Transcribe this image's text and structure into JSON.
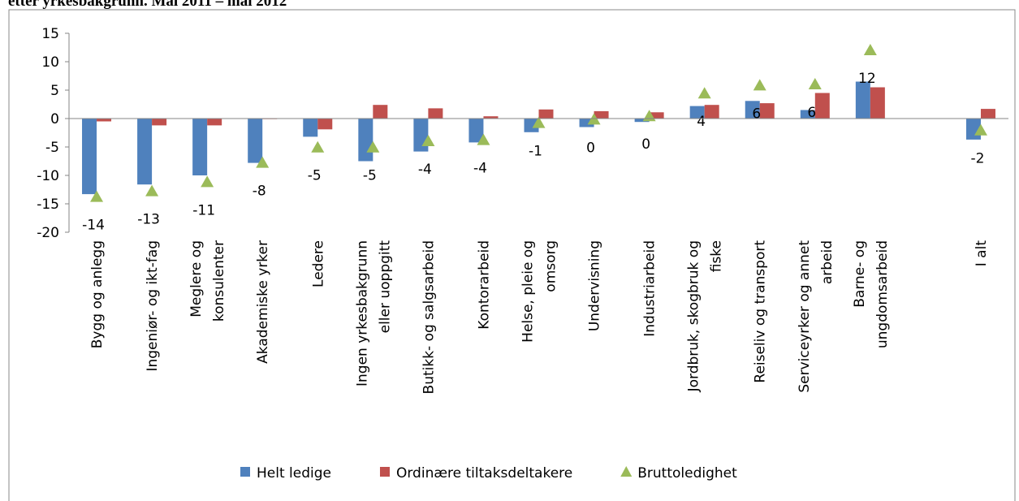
{
  "chart_data": {
    "type": "bar",
    "title": "etter yrkesbakgrunn. Mai 2011 – mai 2012",
    "categories": [
      "Bygg og anlegg",
      "Ingeniør- og ikt-fag",
      "Meglere og\nkonsulenter",
      "Akademiske yrker",
      "Ledere",
      "Ingen yrkesbakgrunn\neller uoppgitt",
      "Butikk- og salgsarbeid",
      "Kontorarbeid",
      "Helse, pleie og\nomsorg",
      "Undervisning",
      "Industriarbeid",
      "Jordbruk, skogbruk og\nfiske",
      "Reiseliv og transport",
      "Serviceyrker og annet\narbeid",
      "Barne- og\nungdomsarbeid",
      null,
      "I alt"
    ],
    "series": [
      {
        "name": "Helt ledige",
        "type": "bar",
        "color": "#4f81bd",
        "values": [
          -13.3,
          -11.6,
          -10,
          -7.8,
          -3.2,
          -7.5,
          -5.8,
          -4.2,
          -2.4,
          -1.5,
          -0.6,
          2.2,
          3.1,
          1.5,
          6.5,
          null,
          -3.7
        ]
      },
      {
        "name": "Ordinære tiltaksdeltakere",
        "type": "bar",
        "color": "#c0504d",
        "values": [
          -0.5,
          -1.2,
          -1.2,
          -0.1,
          -1.9,
          2.4,
          1.8,
          0.4,
          1.6,
          1.3,
          1.1,
          2.4,
          2.7,
          4.5,
          5.5,
          null,
          1.7
        ]
      },
      {
        "name": "Bruttoledighet",
        "type": "scatter",
        "color": "#9bbb59",
        "values": [
          -13.8,
          -12.8,
          -11.2,
          -7.8,
          -5.1,
          -5.1,
          -4,
          -3.8,
          -0.8,
          -0.2,
          0.4,
          4.4,
          5.8,
          6,
          12,
          null,
          -2.1
        ],
        "value_labels": [
          "-14",
          "-13",
          "-11",
          "-8",
          "-5",
          "-5",
          "-4",
          "-4",
          "-1",
          "0",
          "0",
          "4",
          "6",
          "6",
          "12",
          null,
          "-2"
        ]
      }
    ],
    "ylim": [
      -20,
      15
    ],
    "yticks": [
      -20,
      -15,
      -10,
      -5,
      0,
      5,
      10,
      15
    ],
    "grid": false,
    "legend": "bottom"
  }
}
